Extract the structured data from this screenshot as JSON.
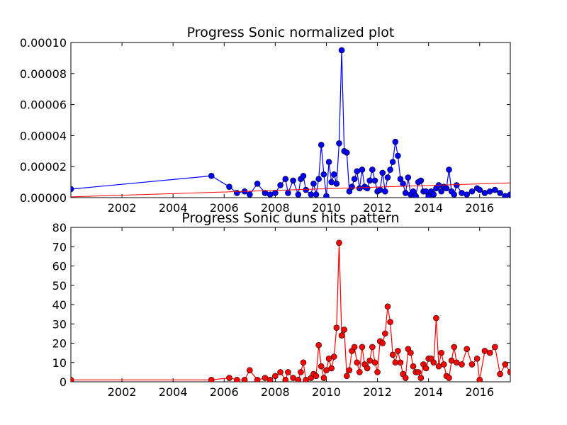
{
  "chart_data": [
    {
      "type": "line",
      "title": "Progress Sonic normalized plot",
      "xlabel": "",
      "ylabel": "",
      "xlim": [
        2000.0,
        2017.2
      ],
      "ylim": [
        0,
        0.0001
      ],
      "x_ticks": [
        2002,
        2004,
        2006,
        2008,
        2010,
        2012,
        2014,
        2016
      ],
      "x_tick_labels": [
        "2002",
        "2004",
        "2006",
        "2008",
        "2010",
        "2012",
        "2014",
        "2016"
      ],
      "y_ticks": [
        0,
        2e-05,
        4e-05,
        6e-05,
        8e-05,
        0.0001
      ],
      "y_tick_labels": [
        "0.00000",
        "0.00002",
        "0.00004",
        "0.00006",
        "0.00008",
        "0.00010"
      ],
      "grid": false,
      "colors": {
        "series": "#0000ff",
        "trend": "#ff0000"
      },
      "series": [
        {
          "x": [
            2000.0,
            2005.5,
            2006.2,
            2006.5,
            2006.8,
            2007.0,
            2007.3,
            2007.6,
            2007.8,
            2008.0,
            2008.2,
            2008.4,
            2008.5,
            2008.7,
            2008.9,
            2009.0,
            2009.1,
            2009.2,
            2009.4,
            2009.5,
            2009.6,
            2009.7,
            2009.8,
            2009.9,
            2010.0,
            2010.1,
            2010.2,
            2010.3,
            2010.4,
            2010.5,
            2010.6,
            2010.7,
            2010.8,
            2010.9,
            2011.0,
            2011.1,
            2011.2,
            2011.3,
            2011.4,
            2011.5,
            2011.6,
            2011.7,
            2011.8,
            2011.9,
            2012.0,
            2012.1,
            2012.2,
            2012.3,
            2012.4,
            2012.5,
            2012.6,
            2012.7,
            2012.8,
            2012.9,
            2013.0,
            2013.1,
            2013.2,
            2013.3,
            2013.4,
            2013.5,
            2013.6,
            2013.7,
            2013.8,
            2013.9,
            2014.0,
            2014.1,
            2014.2,
            2014.3,
            2014.4,
            2014.5,
            2014.6,
            2014.7,
            2014.8,
            2014.9,
            2015.0,
            2015.1,
            2015.3,
            2015.5,
            2015.7,
            2015.9,
            2016.0,
            2016.2,
            2016.4,
            2016.6,
            2016.8,
            2017.0,
            2017.2
          ],
          "y": [
            5.5e-06,
            1.4e-05,
            7e-06,
            3e-06,
            4e-06,
            2e-06,
            9e-06,
            3e-06,
            2e-06,
            3e-06,
            8e-06,
            1.2e-05,
            3e-06,
            1.1e-05,
            2e-06,
            1.2e-05,
            1.4e-05,
            5e-06,
            2e-06,
            9e-06,
            2e-06,
            1.2e-05,
            3.4e-05,
            1.5e-05,
            1e-06,
            2.3e-05,
            1e-05,
            1.5e-05,
            9e-06,
            3.5e-05,
            9.5e-05,
            3e-05,
            2.9e-05,
            4e-06,
            7e-06,
            1.2e-05,
            1.7e-05,
            6e-06,
            1.8e-05,
            7e-06,
            6e-06,
            1.1e-05,
            1.8e-05,
            1.1e-05,
            4e-06,
            5e-06,
            1.6e-05,
            4e-06,
            1.3e-05,
            1.8e-05,
            2.3e-05,
            3.6e-05,
            2.7e-05,
            1.2e-05,
            9e-06,
            3e-06,
            1.3e-05,
            2e-06,
            4e-06,
            1e-06,
            1e-05,
            1.1e-05,
            4e-06,
            4e-06,
            1e-06,
            4e-06,
            2e-06,
            6e-06,
            8e-06,
            4e-06,
            7e-06,
            6e-06,
            1.8e-05,
            4e-06,
            2e-06,
            8e-06,
            3e-06,
            2e-06,
            4e-06,
            6e-06,
            5e-06,
            3e-06,
            4e-06,
            5e-06,
            3e-06,
            1e-06,
            2e-06
          ]
        },
        {
          "x": [
            2000.0,
            2017.2
          ],
          "y": [
            5e-07,
            9.5e-06
          ]
        }
      ]
    },
    {
      "type": "line",
      "title": "Progress Sonic duns hits pattern",
      "xlabel": "",
      "ylabel": "",
      "xlim": [
        2000.0,
        2017.2
      ],
      "ylim": [
        0,
        80
      ],
      "x_ticks": [
        2002,
        2004,
        2006,
        2008,
        2010,
        2012,
        2014,
        2016
      ],
      "x_tick_labels": [
        "2002",
        "2004",
        "2006",
        "2008",
        "2010",
        "2012",
        "2014",
        "2016"
      ],
      "y_ticks": [
        0,
        10,
        20,
        30,
        40,
        50,
        60,
        70,
        80
      ],
      "y_tick_labels": [
        "0",
        "10",
        "20",
        "30",
        "40",
        "50",
        "60",
        "70",
        "80"
      ],
      "grid": false,
      "colors": {
        "series": "#ff0000"
      },
      "series": [
        {
          "x": [
            2000.0,
            2005.5,
            2006.2,
            2006.5,
            2006.8,
            2007.0,
            2007.3,
            2007.6,
            2007.8,
            2008.0,
            2008.2,
            2008.4,
            2008.5,
            2008.7,
            2008.9,
            2009.0,
            2009.1,
            2009.2,
            2009.4,
            2009.5,
            2009.6,
            2009.7,
            2009.8,
            2009.9,
            2010.0,
            2010.1,
            2010.2,
            2010.3,
            2010.4,
            2010.5,
            2010.6,
            2010.7,
            2010.8,
            2010.9,
            2011.0,
            2011.1,
            2011.2,
            2011.3,
            2011.4,
            2011.5,
            2011.6,
            2011.7,
            2011.8,
            2011.9,
            2012.0,
            2012.1,
            2012.2,
            2012.3,
            2012.4,
            2012.5,
            2012.6,
            2012.7,
            2012.8,
            2012.9,
            2013.0,
            2013.1,
            2013.2,
            2013.3,
            2013.4,
            2013.5,
            2013.6,
            2013.7,
            2013.8,
            2013.9,
            2014.0,
            2014.1,
            2014.2,
            2014.3,
            2014.4,
            2014.5,
            2014.6,
            2014.7,
            2014.8,
            2014.9,
            2015.0,
            2015.1,
            2015.3,
            2015.5,
            2015.7,
            2015.9,
            2016.0,
            2016.2,
            2016.4,
            2016.6,
            2016.8,
            2017.0,
            2017.2
          ],
          "y": [
            1,
            1,
            2,
            1,
            1,
            6,
            1,
            2,
            1,
            3,
            5,
            1,
            5,
            2,
            1,
            5,
            10,
            1,
            2,
            4,
            3,
            19,
            8,
            2,
            6,
            12,
            7,
            13,
            28,
            72,
            24,
            27,
            3,
            6,
            16,
            18,
            10,
            5,
            18,
            9,
            7,
            11,
            18,
            10,
            5,
            21,
            20,
            25,
            39,
            31,
            14,
            10,
            16,
            10,
            4,
            2,
            17,
            15,
            8,
            5,
            5,
            2,
            9,
            7,
            12,
            12,
            10,
            33,
            8,
            15,
            9,
            3,
            2,
            11,
            18,
            10,
            9,
            17,
            9,
            12,
            1,
            16,
            15,
            18,
            4,
            9,
            5
          ]
        }
      ]
    }
  ]
}
